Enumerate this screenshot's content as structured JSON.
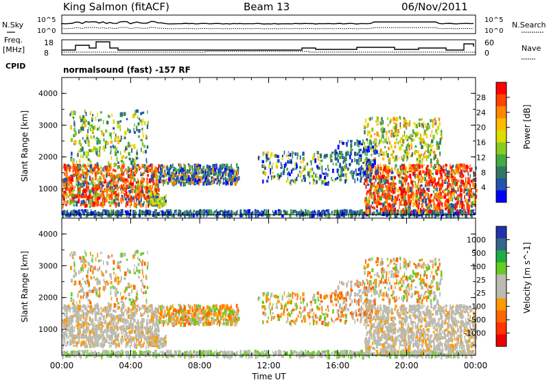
{
  "header": {
    "station": "King Salmon (fitACF)",
    "beam": "Beam 13",
    "date": "06/Nov/2011"
  },
  "strip": {
    "left_labels": {
      "nsky": "N.Sky",
      "freq_line1": "Freq.",
      "freq_line2": "[MHz]",
      "cpid": "CPID"
    },
    "right_labels": {
      "nsearch": "N.Search",
      "nave": "Nave"
    },
    "sky_ticks": [
      "10^5",
      "10^0"
    ],
    "freq_ticks": [
      "18",
      "8"
    ],
    "nave_ticks": [
      "60",
      "0"
    ],
    "mode_text": "normalsound (fast) -157 RF"
  },
  "chart_data": [
    {
      "type": "heatmap",
      "quantity": "Power",
      "ylabel": "Slant Range [km]",
      "xlabel": "Time UT",
      "xlim": [
        "00:00",
        "24:00"
      ],
      "ylim": [
        180,
        4500
      ],
      "y_ticks": [
        "1000",
        "2000",
        "3000",
        "4000"
      ],
      "x_ticks": [
        "00:00",
        "04:00",
        "08:00",
        "12:00",
        "16:00",
        "20:00",
        "00:00"
      ],
      "colorbar": {
        "label": "Power [dB]",
        "ticks": [
          "28",
          "24",
          "20",
          "16",
          "12",
          "8",
          "4"
        ],
        "colors": [
          "#ff0000",
          "#ff4400",
          "#ff8800",
          "#ffbb00",
          "#dddd00",
          "#88cc22",
          "#44aa44",
          "#337766",
          "#2255aa",
          "#0000ff"
        ]
      }
    },
    {
      "type": "heatmap",
      "quantity": "Velocity",
      "ylabel": "Slant Range [km]",
      "xlabel": "Time UT",
      "xlim": [
        "00:00",
        "24:00"
      ],
      "ylim": [
        180,
        4500
      ],
      "y_ticks": [
        "1000",
        "2000",
        "3000",
        "4000"
      ],
      "x_ticks": [
        "00:00",
        "04:00",
        "08:00",
        "12:00",
        "16:00",
        "20:00",
        "00:00"
      ],
      "colorbar": {
        "label": "Velocity [m s^-1]",
        "ticks": [
          "1000",
          "500",
          "100",
          "25",
          "-25",
          "-100",
          "-500",
          "-1000"
        ],
        "colors": [
          "#2233aa",
          "#336688",
          "#22aa44",
          "#66cc22",
          "#bbbbb0",
          "#bbbbb0",
          "#ff9900",
          "#ff6600",
          "#ff3300",
          "#ee0000"
        ]
      }
    }
  ]
}
